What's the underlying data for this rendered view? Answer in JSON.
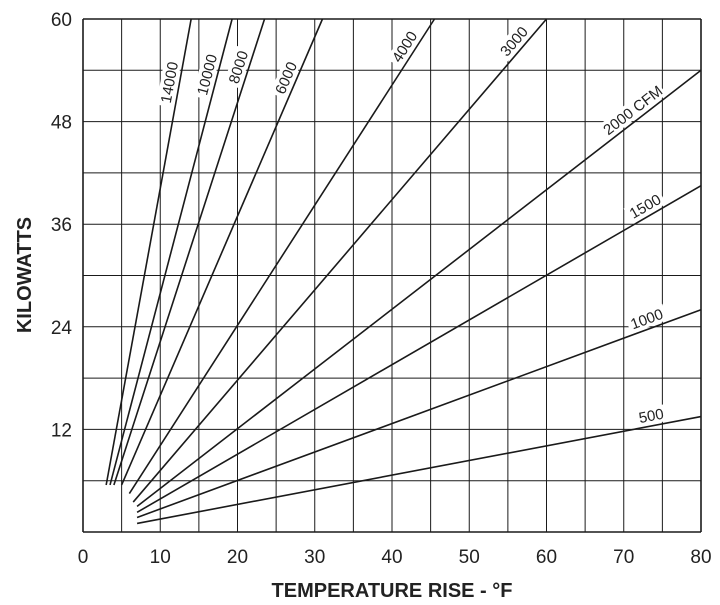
{
  "chart_data": {
    "type": "line",
    "title": "",
    "xlabel": "TEMPERATURE RISE - °F",
    "ylabel": "KILOWATTS",
    "xlim": [
      0,
      80
    ],
    "ylim": [
      0,
      60
    ],
    "x_ticks": [
      "0",
      "10",
      "20",
      "30",
      "40",
      "50",
      "60",
      "70",
      "80"
    ],
    "y_ticks": [
      "12",
      "24",
      "36",
      "48",
      "60"
    ],
    "grid": true,
    "series": [
      {
        "name": "14000",
        "x": [
          3,
          14
        ],
        "y": [
          5.5,
          60
        ]
      },
      {
        "name": "10000",
        "x": [
          3.5,
          19.3
        ],
        "y": [
          5.5,
          60
        ]
      },
      {
        "name": "8000",
        "x": [
          4,
          23.5
        ],
        "y": [
          5.5,
          60
        ]
      },
      {
        "name": "6000",
        "x": [
          5,
          31
        ],
        "y": [
          5.5,
          60
        ]
      },
      {
        "name": "4000",
        "x": [
          6,
          45.5
        ],
        "y": [
          4.5,
          60
        ]
      },
      {
        "name": "3000",
        "x": [
          6.5,
          60
        ],
        "y": [
          3.5,
          60
        ]
      },
      {
        "name": "2000 CFM",
        "x": [
          7,
          80
        ],
        "y": [
          3,
          54
        ]
      },
      {
        "name": "1500",
        "x": [
          7,
          80
        ],
        "y": [
          2.3,
          40.5
        ]
      },
      {
        "name": "1000",
        "x": [
          7,
          80
        ],
        "y": [
          1.7,
          26
        ]
      },
      {
        "name": "500",
        "x": [
          7,
          80
        ],
        "y": [
          1,
          13.5
        ]
      }
    ]
  }
}
